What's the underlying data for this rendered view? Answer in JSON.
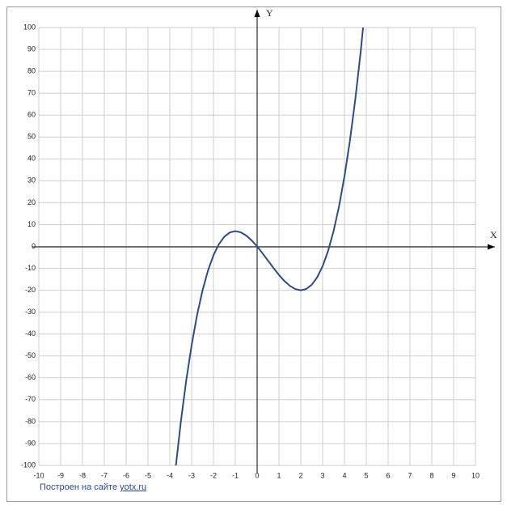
{
  "chart_data": {
    "type": "line",
    "xlabel": "X",
    "ylabel": "Y",
    "color": "#2b4c8c",
    "grid": true,
    "xlim": [
      -10,
      10
    ],
    "xticks": [
      -10,
      -9,
      -8,
      -7,
      -6,
      -5,
      -4,
      -3,
      -2,
      -1,
      0,
      1,
      2,
      3,
      4,
      5,
      6,
      7,
      8,
      9,
      10
    ],
    "ylim": [
      -100,
      100
    ],
    "yticks": [
      -100,
      -90,
      -80,
      -70,
      -60,
      -50,
      -40,
      -30,
      -20,
      -10,
      0,
      10,
      20,
      30,
      40,
      50,
      60,
      70,
      80,
      90,
      100
    ],
    "x": [
      -3.75,
      -3.5,
      -3.25,
      -3,
      -2.75,
      -2.5,
      -2.25,
      -2,
      -1.75,
      -1.5,
      -1.25,
      -1,
      -0.75,
      -0.5,
      -0.25,
      0,
      0.25,
      0.5,
      0.75,
      1,
      1.25,
      1.5,
      1.75,
      2,
      2.25,
      2.5,
      2.75,
      3,
      3.25,
      3.5,
      3.75,
      4,
      4.25,
      4.5,
      4.75,
      5
    ],
    "values": [
      -102.66,
      -80.5,
      -61.34,
      -45,
      -31.28,
      -20,
      -10.97,
      -4,
      1.09,
      4.5,
      6.41,
      7,
      6.47,
      5,
      2.78,
      0,
      -3.16,
      -6.5,
      -9.84,
      -13,
      -15.78,
      -18,
      -19.47,
      -20,
      -19.41,
      -17.5,
      -14.09,
      -9,
      -2.03,
      7,
      18.28,
      32,
      48.34,
      67.5,
      89.66,
      115
    ],
    "footer": {
      "text": "Построен на сайте",
      "link": "yotx.ru"
    }
  }
}
